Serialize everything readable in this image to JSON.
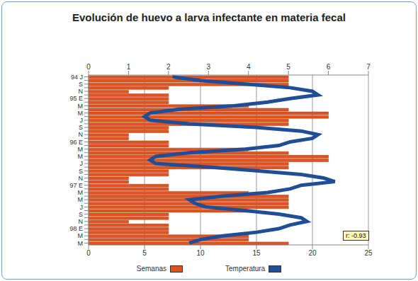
{
  "chart_data": {
    "type": "bar",
    "title": "Evolución de huevo a larva infectante en materia fecal",
    "orientation": "horizontal",
    "categories": [
      "94 J",
      null,
      "S",
      null,
      "N",
      null,
      "95 E",
      null,
      "M",
      null,
      "M",
      null,
      "J",
      null,
      "S",
      null,
      "N",
      null,
      "96 E",
      null,
      "M",
      null,
      "M",
      null,
      "J",
      null,
      "S",
      null,
      "N",
      null,
      "97 E",
      null,
      "M",
      null,
      "M",
      null,
      "J",
      null,
      "S",
      null,
      "N",
      null,
      "98 E",
      null,
      "M",
      null,
      "M"
    ],
    "series": [
      {
        "name": "Semanas",
        "color": "#e2541f",
        "type": "bar",
        "values": [
          5,
          5,
          5,
          2,
          1,
          2,
          2,
          2,
          4,
          5,
          6,
          6,
          5,
          5,
          2,
          2,
          1,
          1,
          2,
          2,
          4,
          5,
          6,
          6,
          5,
          5,
          2,
          2,
          1,
          1,
          2,
          2,
          4,
          5,
          5,
          5,
          5,
          4,
          2,
          2,
          1,
          2,
          2,
          2,
          4,
          4,
          5
        ]
      },
      {
        "name": "Temperatura",
        "color": "#1f4e96",
        "type": "line",
        "axis": "y2",
        "values": [
          7.5,
          10,
          14,
          18,
          20,
          20.5,
          18,
          16,
          13,
          8,
          5.5,
          5,
          5.5,
          9,
          15,
          19,
          20.5,
          20,
          18,
          17,
          14,
          9,
          6,
          5.5,
          6,
          11,
          15,
          19,
          21,
          22,
          19,
          18,
          16,
          12,
          9,
          9.5,
          10.5,
          14,
          17,
          19,
          19.5,
          18,
          17,
          15,
          12,
          10,
          9
        ]
      }
    ],
    "ylim": [
      0,
      7
    ],
    "yticks": [
      0,
      1,
      2,
      3,
      4,
      5,
      6,
      7
    ],
    "y2lim": [
      0,
      25
    ],
    "y2ticks": [
      0,
      5,
      10,
      15,
      20,
      25
    ],
    "grid": true,
    "annotations": [
      "r: -0.93"
    ]
  }
}
